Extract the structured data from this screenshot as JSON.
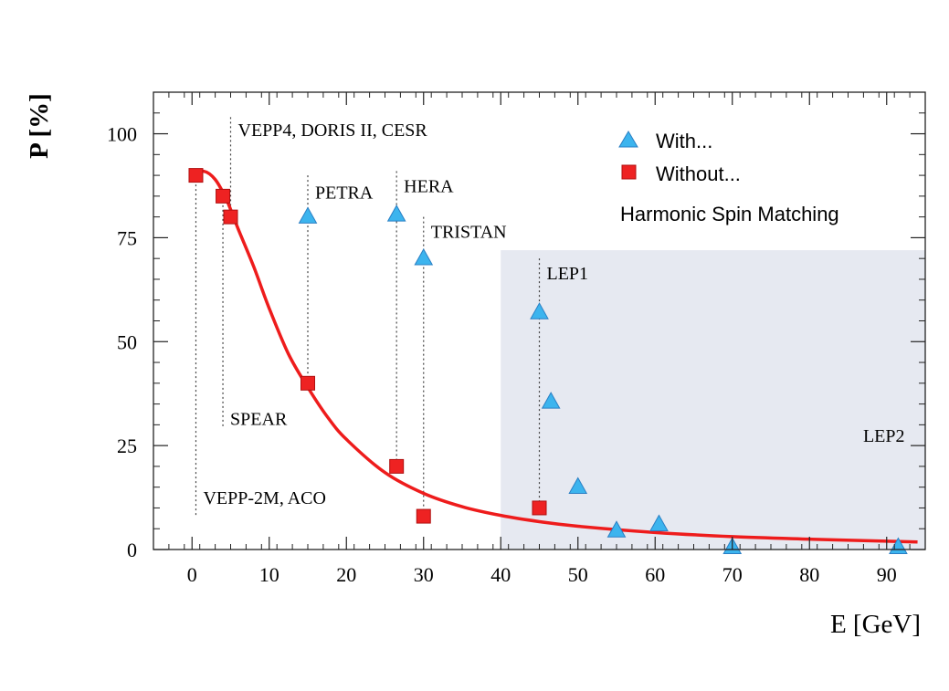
{
  "chart_data": {
    "type": "scatter",
    "xlabel": "E [GeV]",
    "ylabel": "P [%]",
    "xlim": [
      -5,
      95
    ],
    "ylim": [
      0,
      110
    ],
    "x_ticks": [
      0,
      10,
      20,
      30,
      40,
      50,
      60,
      70,
      80,
      90
    ],
    "y_ticks": [
      0,
      25,
      50,
      75,
      100
    ],
    "shaded_region": {
      "label": "LEP2",
      "x_range": [
        40,
        95
      ],
      "y_range": [
        0,
        72
      ],
      "color": "#e6e9f1"
    },
    "legend": {
      "placement": "top-right",
      "entries": [
        "With...",
        "Without..."
      ],
      "note": "Harmonic Spin Matching"
    },
    "series": [
      {
        "name": "With...",
        "marker": "triangle",
        "color": "#3cb4ee",
        "points": [
          {
            "x": 15,
            "y": 80
          },
          {
            "x": 26.5,
            "y": 80.5
          },
          {
            "x": 30,
            "y": 70
          },
          {
            "x": 45,
            "y": 57
          },
          {
            "x": 46.5,
            "y": 35.5
          },
          {
            "x": 50,
            "y": 15
          },
          {
            "x": 55,
            "y": 4.5
          },
          {
            "x": 60.5,
            "y": 6
          },
          {
            "x": 70,
            "y": 0.5
          },
          {
            "x": 91.5,
            "y": 0.5
          }
        ]
      },
      {
        "name": "Without...",
        "marker": "square",
        "color": "#ee2222",
        "points": [
          {
            "x": 0.5,
            "y": 90
          },
          {
            "x": 4,
            "y": 85
          },
          {
            "x": 5,
            "y": 80
          },
          {
            "x": 15,
            "y": 40
          },
          {
            "x": 26.5,
            "y": 20
          },
          {
            "x": 30,
            "y": 8
          },
          {
            "x": 45,
            "y": 10
          }
        ]
      }
    ],
    "fit_curve": {
      "color": "#ee1c1c",
      "x": [
        0,
        1.5,
        3,
        4.5,
        6,
        8,
        10,
        12.5,
        15,
        17.5,
        20,
        25,
        30,
        35,
        40,
        45,
        50,
        60,
        70,
        80,
        90,
        94
      ],
      "y": [
        90,
        91,
        89,
        84,
        77,
        68,
        58,
        47,
        39,
        32,
        26.5,
        18.5,
        13.5,
        10.3,
        8.2,
        6.7,
        5.6,
        4.1,
        3.1,
        2.5,
        2.0,
        1.8
      ]
    },
    "annotations": [
      {
        "text": "VEPP-2M, ACO",
        "x": 0.5,
        "y_top": 90,
        "y_bottom": 8,
        "label_y": 12.5
      },
      {
        "text": "SPEAR",
        "x": 4,
        "y_top": 85,
        "y_bottom": 29,
        "label_y": 31.5
      },
      {
        "text": "VEPP4, DORIS II, CESR",
        "x": 5,
        "y_top": 104,
        "y_bottom": 80,
        "label_y": 101
      },
      {
        "text": "PETRA",
        "x": 15,
        "y_top": 90,
        "y_bottom": 40,
        "label_y": 86
      },
      {
        "text": "HERA",
        "x": 26.5,
        "y_top": 91,
        "y_bottom": 20,
        "label_y": 87.5
      },
      {
        "text": "TRISTAN",
        "x": 30,
        "y_top": 80,
        "y_bottom": 8,
        "label_y": 76.5
      },
      {
        "text": "LEP1",
        "x": 45,
        "y_top": 70,
        "y_bottom": 10,
        "label_y": 66.5
      },
      {
        "text": "LEP2",
        "x": 86,
        "y_top": null,
        "y_bottom": null,
        "label_y": 27.5
      }
    ]
  }
}
